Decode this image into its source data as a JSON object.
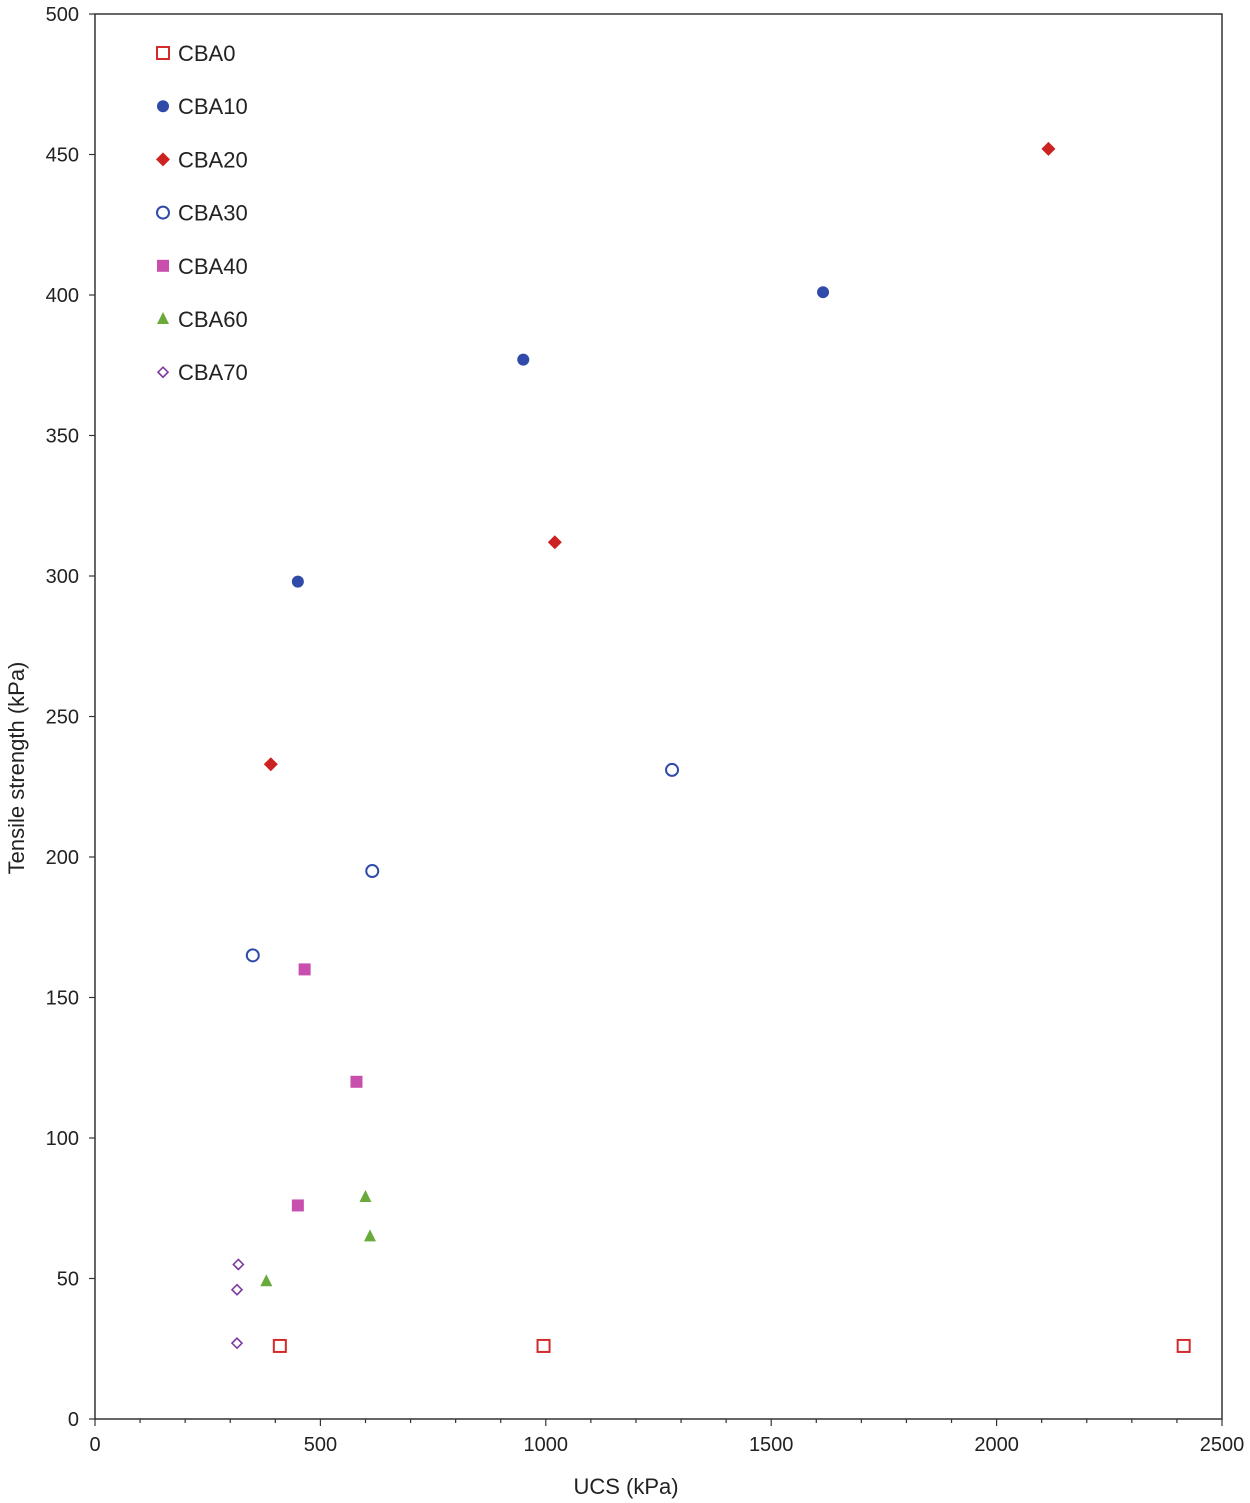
{
  "chart_data": {
    "type": "scatter",
    "title": "",
    "xlabel": "UCS (kPa)",
    "ylabel": "Tensile strength (kPa)",
    "xlim": [
      0,
      2500
    ],
    "ylim": [
      0,
      500
    ],
    "x_ticks": [
      0,
      500,
      1000,
      1500,
      2000,
      2500
    ],
    "y_ticks": [
      0,
      50,
      100,
      150,
      200,
      250,
      300,
      350,
      400,
      450,
      500
    ],
    "x_tick_labels": [
      "0",
      "500",
      "1000",
      "1500",
      "2000",
      "2500"
    ],
    "y_tick_labels": [
      "0",
      "50",
      "100",
      "150",
      "200",
      "250",
      "300",
      "350",
      "400",
      "450",
      "500"
    ],
    "grid": false,
    "legend_position": "top-left",
    "series": [
      {
        "name": "CBA0",
        "marker": "square-open",
        "color": "#d42a2a",
        "points": [
          [
            410,
            26
          ],
          [
            995,
            26
          ],
          [
            2415,
            26
          ]
        ]
      },
      {
        "name": "CBA10",
        "marker": "circle-filled",
        "color": "#2f4aa8",
        "points": [
          [
            450,
            298
          ],
          [
            950,
            377
          ],
          [
            1615,
            401
          ]
        ]
      },
      {
        "name": "CBA20",
        "marker": "diamond-filled",
        "color": "#cc2222",
        "points": [
          [
            390,
            233
          ],
          [
            1020,
            312
          ],
          [
            2115,
            452
          ]
        ]
      },
      {
        "name": "CBA30",
        "marker": "circle-open",
        "color": "#2f4aa8",
        "points": [
          [
            350,
            165
          ],
          [
            615,
            195
          ],
          [
            1280,
            231
          ]
        ]
      },
      {
        "name": "CBA40",
        "marker": "square-filled",
        "color": "#c94fae",
        "points": [
          [
            450,
            76
          ],
          [
            465,
            160
          ],
          [
            580,
            120
          ]
        ]
      },
      {
        "name": "CBA60",
        "marker": "triangle-filled",
        "color": "#6aaa3a",
        "points": [
          [
            380,
            49
          ],
          [
            600,
            79
          ],
          [
            610,
            65
          ]
        ]
      },
      {
        "name": "CBA70",
        "marker": "diamond-open",
        "color": "#7d3aa0",
        "points": [
          [
            315,
            27
          ],
          [
            315,
            46
          ],
          [
            318,
            55
          ]
        ]
      }
    ]
  }
}
